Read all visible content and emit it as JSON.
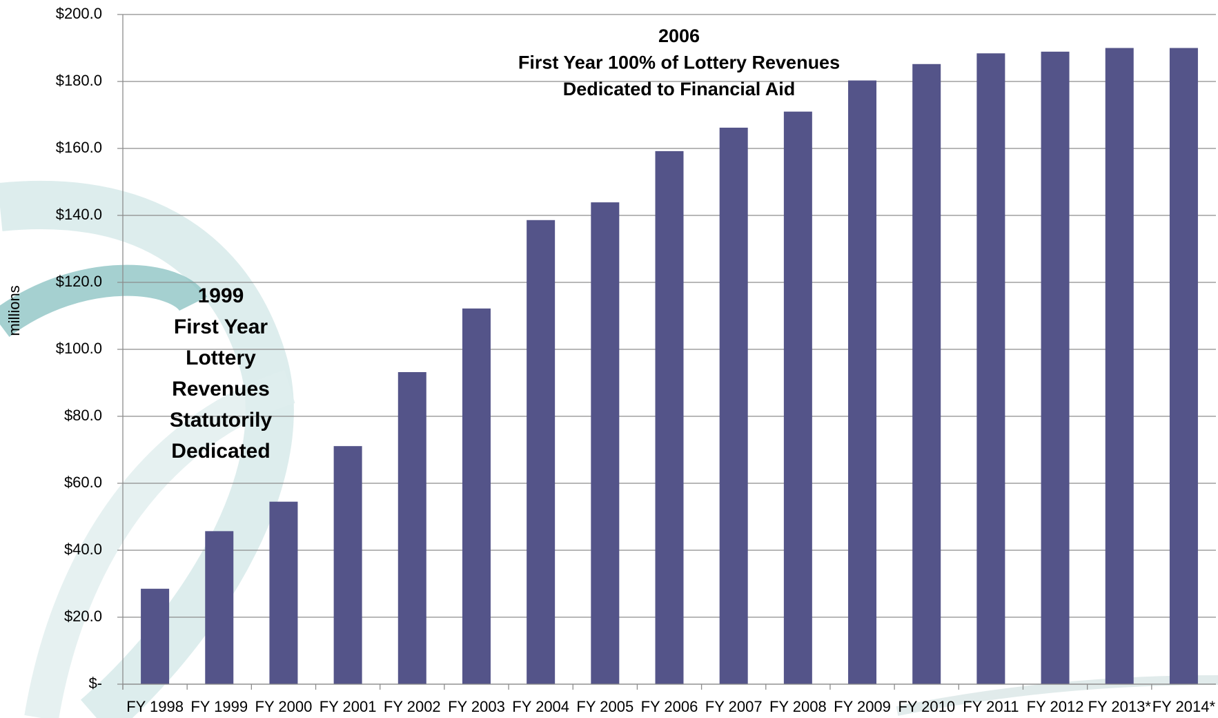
{
  "chart_data": {
    "type": "bar",
    "y_label": "millions",
    "categories": [
      "FY 1998",
      "FY 1999",
      "FY 2000",
      "FY 2001",
      "FY 2002",
      "FY 2003",
      "FY 2004",
      "FY 2005",
      "FY 2006",
      "FY 2007",
      "FY 2008",
      "FY 2009",
      "FY 2010",
      "FY 2011",
      "FY 2012",
      "FY 2013*",
      "FY 2014*"
    ],
    "values": [
      28.5,
      45.7,
      54.5,
      71.1,
      93.2,
      112.2,
      138.6,
      143.9,
      159.2,
      166.2,
      171.0,
      180.3,
      185.2,
      188.4,
      188.9,
      190.0,
      190.0
    ],
    "color": "#545489",
    "ylim": [
      0,
      200
    ],
    "yticks": [
      {
        "value": 0,
        "label": "$-"
      },
      {
        "value": 20,
        "label": "$20.0"
      },
      {
        "value": 40,
        "label": "$40.0"
      },
      {
        "value": 60,
        "label": "$60.0"
      },
      {
        "value": 80,
        "label": "$80.0"
      },
      {
        "value": 100,
        "label": "$100.0"
      },
      {
        "value": 120,
        "label": "$120.0"
      },
      {
        "value": 140,
        "label": "$140.0"
      },
      {
        "value": 160,
        "label": "$160.0"
      },
      {
        "value": 180,
        "label": "$180.0"
      },
      {
        "value": 200,
        "label": "$200.0"
      }
    ],
    "grid": true,
    "annotations": [
      {
        "lines": [
          "1999",
          "First Year",
          "Lottery",
          "Revenues",
          "Statutorily",
          "Dedicated"
        ]
      },
      {
        "lines": [
          "2006",
          "First Year 100% of Lottery Revenues",
          "Dedicated to Financial Aid"
        ]
      }
    ]
  }
}
